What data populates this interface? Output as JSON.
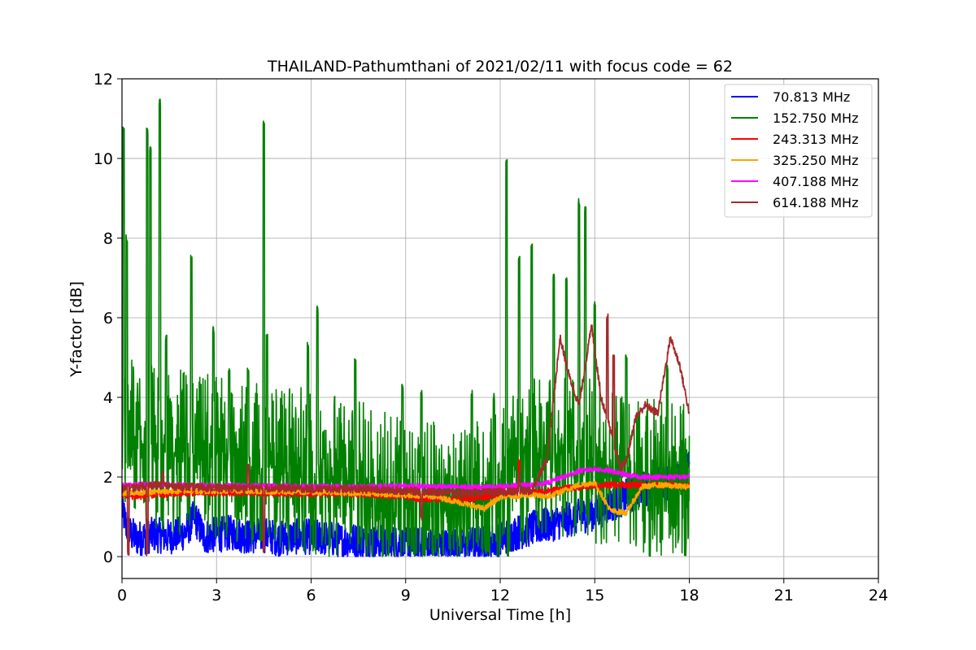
{
  "chart_data": {
    "type": "line",
    "title": "THAILAND-Pathumthani of 2021/02/11 with focus code = 62",
    "xlabel": "Universal Time [h]",
    "ylabel": "Y-factor [dB]",
    "xlim": [
      0,
      24
    ],
    "ylim": [
      -0.55,
      12
    ],
    "xticks": [
      0,
      3,
      6,
      9,
      12,
      15,
      18,
      21,
      24
    ],
    "yticks": [
      0,
      2,
      4,
      6,
      8,
      10,
      12
    ],
    "grid": true,
    "legend_position": "top-right",
    "series": [
      {
        "name": "70.813 MHz",
        "color": "#0000ff",
        "points": [
          [
            0,
            1.2
          ],
          [
            0.2,
            0.6
          ],
          [
            0.5,
            0.45
          ],
          [
            1,
            0.55
          ],
          [
            1.5,
            0.5
          ],
          [
            2,
            0.6
          ],
          [
            2.3,
            1.0
          ],
          [
            2.6,
            0.5
          ],
          [
            3,
            0.55
          ],
          [
            3.5,
            0.6
          ],
          [
            4,
            0.5
          ],
          [
            4.5,
            0.55
          ],
          [
            5,
            0.45
          ],
          [
            5.5,
            0.5
          ],
          [
            6,
            0.5
          ],
          [
            6.5,
            0.45
          ],
          [
            7,
            0.4
          ],
          [
            7.5,
            0.4
          ],
          [
            8,
            0.35
          ],
          [
            8.5,
            0.35
          ],
          [
            9,
            0.3
          ],
          [
            9.5,
            0.3
          ],
          [
            10,
            0.3
          ],
          [
            10.5,
            0.25
          ],
          [
            11,
            0.3
          ],
          [
            11.5,
            0.35
          ],
          [
            12,
            0.45
          ],
          [
            12.5,
            0.6
          ],
          [
            13,
            0.7
          ],
          [
            13.5,
            0.8
          ],
          [
            14,
            0.9
          ],
          [
            14.5,
            1.0
          ],
          [
            15,
            1.1
          ],
          [
            15.5,
            1.3
          ],
          [
            16,
            1.5
          ],
          [
            16.5,
            1.7
          ],
          [
            17,
            1.8
          ],
          [
            17.5,
            1.9
          ],
          [
            18,
            2.2
          ]
        ],
        "noise": 0.45
      },
      {
        "name": "152.750 MHz",
        "color": "#008000",
        "points": [
          [
            0,
            3.0
          ],
          [
            0.5,
            2.8
          ],
          [
            1,
            2.7
          ],
          [
            1.5,
            2.6
          ],
          [
            2,
            2.6
          ],
          [
            2.5,
            2.5
          ],
          [
            3,
            2.5
          ],
          [
            3.5,
            2.4
          ],
          [
            4,
            2.4
          ],
          [
            4.5,
            2.3
          ],
          [
            5,
            2.2
          ],
          [
            5.5,
            2.2
          ],
          [
            6,
            2.1
          ],
          [
            6.5,
            2.0
          ],
          [
            7,
            1.9
          ],
          [
            7.5,
            1.8
          ],
          [
            8,
            1.7
          ],
          [
            8.5,
            1.6
          ],
          [
            9,
            1.5
          ],
          [
            9.5,
            1.4
          ],
          [
            10,
            1.4
          ],
          [
            10.5,
            1.3
          ],
          [
            11,
            1.3
          ],
          [
            11.5,
            1.4
          ],
          [
            12,
            1.6
          ],
          [
            12.5,
            2.2
          ],
          [
            13,
            2.4
          ],
          [
            13.5,
            2.5
          ],
          [
            14,
            2.5
          ],
          [
            14.5,
            2.6
          ],
          [
            15,
            2.4
          ],
          [
            15.5,
            2.2
          ],
          [
            16,
            2.0
          ],
          [
            16.5,
            1.9
          ],
          [
            17,
            1.9
          ],
          [
            17.5,
            1.9
          ],
          [
            18,
            1.8
          ]
        ],
        "noise": 1.4,
        "spikes": [
          [
            0.05,
            10.7
          ],
          [
            0.15,
            8.0
          ],
          [
            0.8,
            10.7
          ],
          [
            0.9,
            10.2
          ],
          [
            1.2,
            11.4
          ],
          [
            1.4,
            5.5
          ],
          [
            2.2,
            7.5
          ],
          [
            2.9,
            5.7
          ],
          [
            3.4,
            4.7
          ],
          [
            4.0,
            4.7
          ],
          [
            4.5,
            10.9
          ],
          [
            4.6,
            5.5
          ],
          [
            5.9,
            5.3
          ],
          [
            6.2,
            6.2
          ],
          [
            7.4,
            4.9
          ],
          [
            8.9,
            4.3
          ],
          [
            9.5,
            4.1
          ],
          [
            11.1,
            4.1
          ],
          [
            11.8,
            4.0
          ],
          [
            12.2,
            9.9
          ],
          [
            12.6,
            7.5
          ],
          [
            13.0,
            7.8
          ],
          [
            13.7,
            7.0
          ],
          [
            14.1,
            6.9
          ],
          [
            14.5,
            8.9
          ],
          [
            14.7,
            8.7
          ],
          [
            15.0,
            6.3
          ],
          [
            16.0,
            5.0
          ],
          [
            17.3,
            4.8
          ]
        ]
      },
      {
        "name": "243.313 MHz",
        "color": "#ff0000",
        "points": [
          [
            0,
            1.55
          ],
          [
            0.5,
            1.5
          ],
          [
            1,
            1.55
          ],
          [
            2,
            1.6
          ],
          [
            3,
            1.6
          ],
          [
            4,
            1.6
          ],
          [
            5,
            1.6
          ],
          [
            6,
            1.58
          ],
          [
            7,
            1.58
          ],
          [
            8,
            1.55
          ],
          [
            9,
            1.52
          ],
          [
            9.5,
            1.45
          ],
          [
            10,
            1.45
          ],
          [
            10.5,
            1.42
          ],
          [
            11,
            1.45
          ],
          [
            11.5,
            1.5
          ],
          [
            12,
            1.55
          ],
          [
            12.5,
            1.6
          ],
          [
            13,
            1.6
          ],
          [
            13.5,
            1.65
          ],
          [
            14,
            1.7
          ],
          [
            14.5,
            1.75
          ],
          [
            15,
            1.78
          ],
          [
            15.5,
            1.8
          ],
          [
            16,
            1.8
          ],
          [
            16.5,
            1.8
          ],
          [
            17,
            1.8
          ],
          [
            17.5,
            1.8
          ],
          [
            18,
            1.78
          ]
        ],
        "noise": 0.08,
        "spikes": [
          [
            12.6,
            2.4
          ]
        ]
      },
      {
        "name": "325.250 MHz",
        "color": "#ffa500",
        "points": [
          [
            0,
            1.6
          ],
          [
            1,
            1.62
          ],
          [
            2,
            1.65
          ],
          [
            3,
            1.65
          ],
          [
            4,
            1.65
          ],
          [
            5,
            1.63
          ],
          [
            6,
            1.62
          ],
          [
            7,
            1.6
          ],
          [
            8,
            1.58
          ],
          [
            9,
            1.55
          ],
          [
            10,
            1.5
          ],
          [
            11,
            1.3
          ],
          [
            11.5,
            1.2
          ],
          [
            12,
            1.5
          ],
          [
            13,
            1.55
          ],
          [
            13.5,
            1.5
          ],
          [
            14,
            1.65
          ],
          [
            14.5,
            1.8
          ],
          [
            15,
            1.85
          ],
          [
            15.5,
            1.15
          ],
          [
            16,
            1.1
          ],
          [
            16.5,
            1.75
          ],
          [
            17,
            1.8
          ],
          [
            18,
            1.75
          ]
        ],
        "noise": 0.07
      },
      {
        "name": "407.188 MHz",
        "color": "#ff00ff",
        "points": [
          [
            0,
            1.8
          ],
          [
            1,
            1.82
          ],
          [
            2,
            1.8
          ],
          [
            3,
            1.78
          ],
          [
            4,
            1.78
          ],
          [
            5,
            1.78
          ],
          [
            6,
            1.76
          ],
          [
            7,
            1.76
          ],
          [
            8,
            1.76
          ],
          [
            9,
            1.78
          ],
          [
            10,
            1.76
          ],
          [
            11,
            1.75
          ],
          [
            12,
            1.76
          ],
          [
            13,
            1.8
          ],
          [
            13.5,
            1.85
          ],
          [
            14,
            2.0
          ],
          [
            14.5,
            2.15
          ],
          [
            15,
            2.2
          ],
          [
            15.5,
            2.15
          ],
          [
            16,
            2.05
          ],
          [
            16.5,
            2.0
          ],
          [
            17,
            2.0
          ],
          [
            18,
            2.0
          ]
        ],
        "noise": 0.06
      },
      {
        "name": "614.188 MHz",
        "color": "#a52a2a",
        "points": [
          [
            0,
            1.7
          ],
          [
            0.5,
            1.75
          ],
          [
            1,
            1.8
          ],
          [
            2,
            1.75
          ],
          [
            3,
            1.72
          ],
          [
            4,
            1.72
          ],
          [
            5,
            1.72
          ],
          [
            6,
            1.7
          ],
          [
            7,
            1.7
          ],
          [
            8,
            1.68
          ],
          [
            9,
            1.65
          ],
          [
            10,
            1.62
          ],
          [
            11,
            1.6
          ],
          [
            12,
            1.62
          ],
          [
            13,
            1.65
          ],
          [
            13.5,
            2.5
          ],
          [
            13.9,
            5.5
          ],
          [
            14.2,
            4.5
          ],
          [
            14.5,
            3.8
          ],
          [
            14.9,
            5.8
          ],
          [
            15.2,
            4.0
          ],
          [
            15.5,
            3.2
          ],
          [
            15.8,
            2.2
          ],
          [
            16,
            2.4
          ],
          [
            16.3,
            3.5
          ],
          [
            16.6,
            3.8
          ],
          [
            17,
            3.6
          ],
          [
            17.4,
            5.5
          ],
          [
            17.7,
            4.8
          ],
          [
            18,
            3.6
          ]
        ],
        "noise": 0.1,
        "spikes": [
          [
            0.2,
            0.1
          ],
          [
            0.8,
            0.1
          ],
          [
            1.3,
            2.1
          ],
          [
            4.0,
            2.3
          ],
          [
            4.5,
            0.2
          ],
          [
            9.5,
            1.0
          ],
          [
            12.6,
            2.1
          ],
          [
            15.4,
            6.0
          ],
          [
            15.6,
            5.0
          ]
        ]
      }
    ]
  }
}
